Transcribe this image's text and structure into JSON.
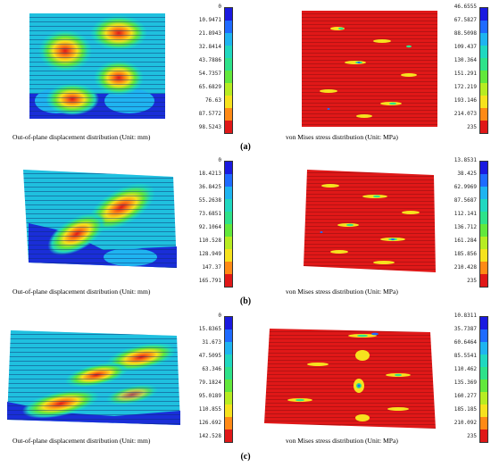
{
  "rows": [
    {
      "label": "(a)",
      "left_caption": "Out-of-plane displacement distribution (Unit: mm)",
      "right_caption": "von Mises stress distribution (Unit: MPa)",
      "disp_ticks": [
        "0",
        "10.9471",
        "21.8943",
        "32.8414",
        "43.7886",
        "54.7357",
        "65.6829",
        "76.63",
        "87.5772",
        "98.5243"
      ],
      "stress_ticks": [
        "46.6555",
        "67.5827",
        "88.5098",
        "109.437",
        "130.364",
        "151.291",
        "172.219",
        "193.146",
        "214.073",
        "235"
      ]
    },
    {
      "label": "(b)",
      "left_caption": "Out-of-plane displacement distribution (Unit: mm)",
      "right_caption": "von Mises stress distribution (Unit: MPa)",
      "disp_ticks": [
        "0",
        "18.4213",
        "36.8425",
        "55.2638",
        "73.6851",
        "92.1064",
        "110.528",
        "128.949",
        "147.37",
        "165.791"
      ],
      "stress_ticks": [
        "13.8531",
        "38.425",
        "62.9969",
        "87.5687",
        "112.141",
        "136.712",
        "161.284",
        "185.856",
        "210.428",
        "235"
      ]
    },
    {
      "label": "(c)",
      "left_caption": "Out-of-plane displacement distribution (Unit: mm)",
      "right_caption": "von Mises stress distribution (Unit: MPa)",
      "disp_ticks": [
        "0",
        "15.8365",
        "31.673",
        "47.5095",
        "63.346",
        "79.1824",
        "95.0189",
        "110.855",
        "126.692",
        "142.528"
      ],
      "stress_ticks": [
        "10.8311",
        "35.7387",
        "60.6464",
        "85.5541",
        "110.462",
        "135.369",
        "160.277",
        "185.185",
        "210.092",
        "235"
      ]
    }
  ],
  "colorbar": [
    "#1a1ae0",
    "#1f6bff",
    "#1fb4f0",
    "#20d8c0",
    "#2ee28a",
    "#62e83c",
    "#b7ec22",
    "#f6e21e",
    "#ff8a16",
    "#e01818"
  ]
}
